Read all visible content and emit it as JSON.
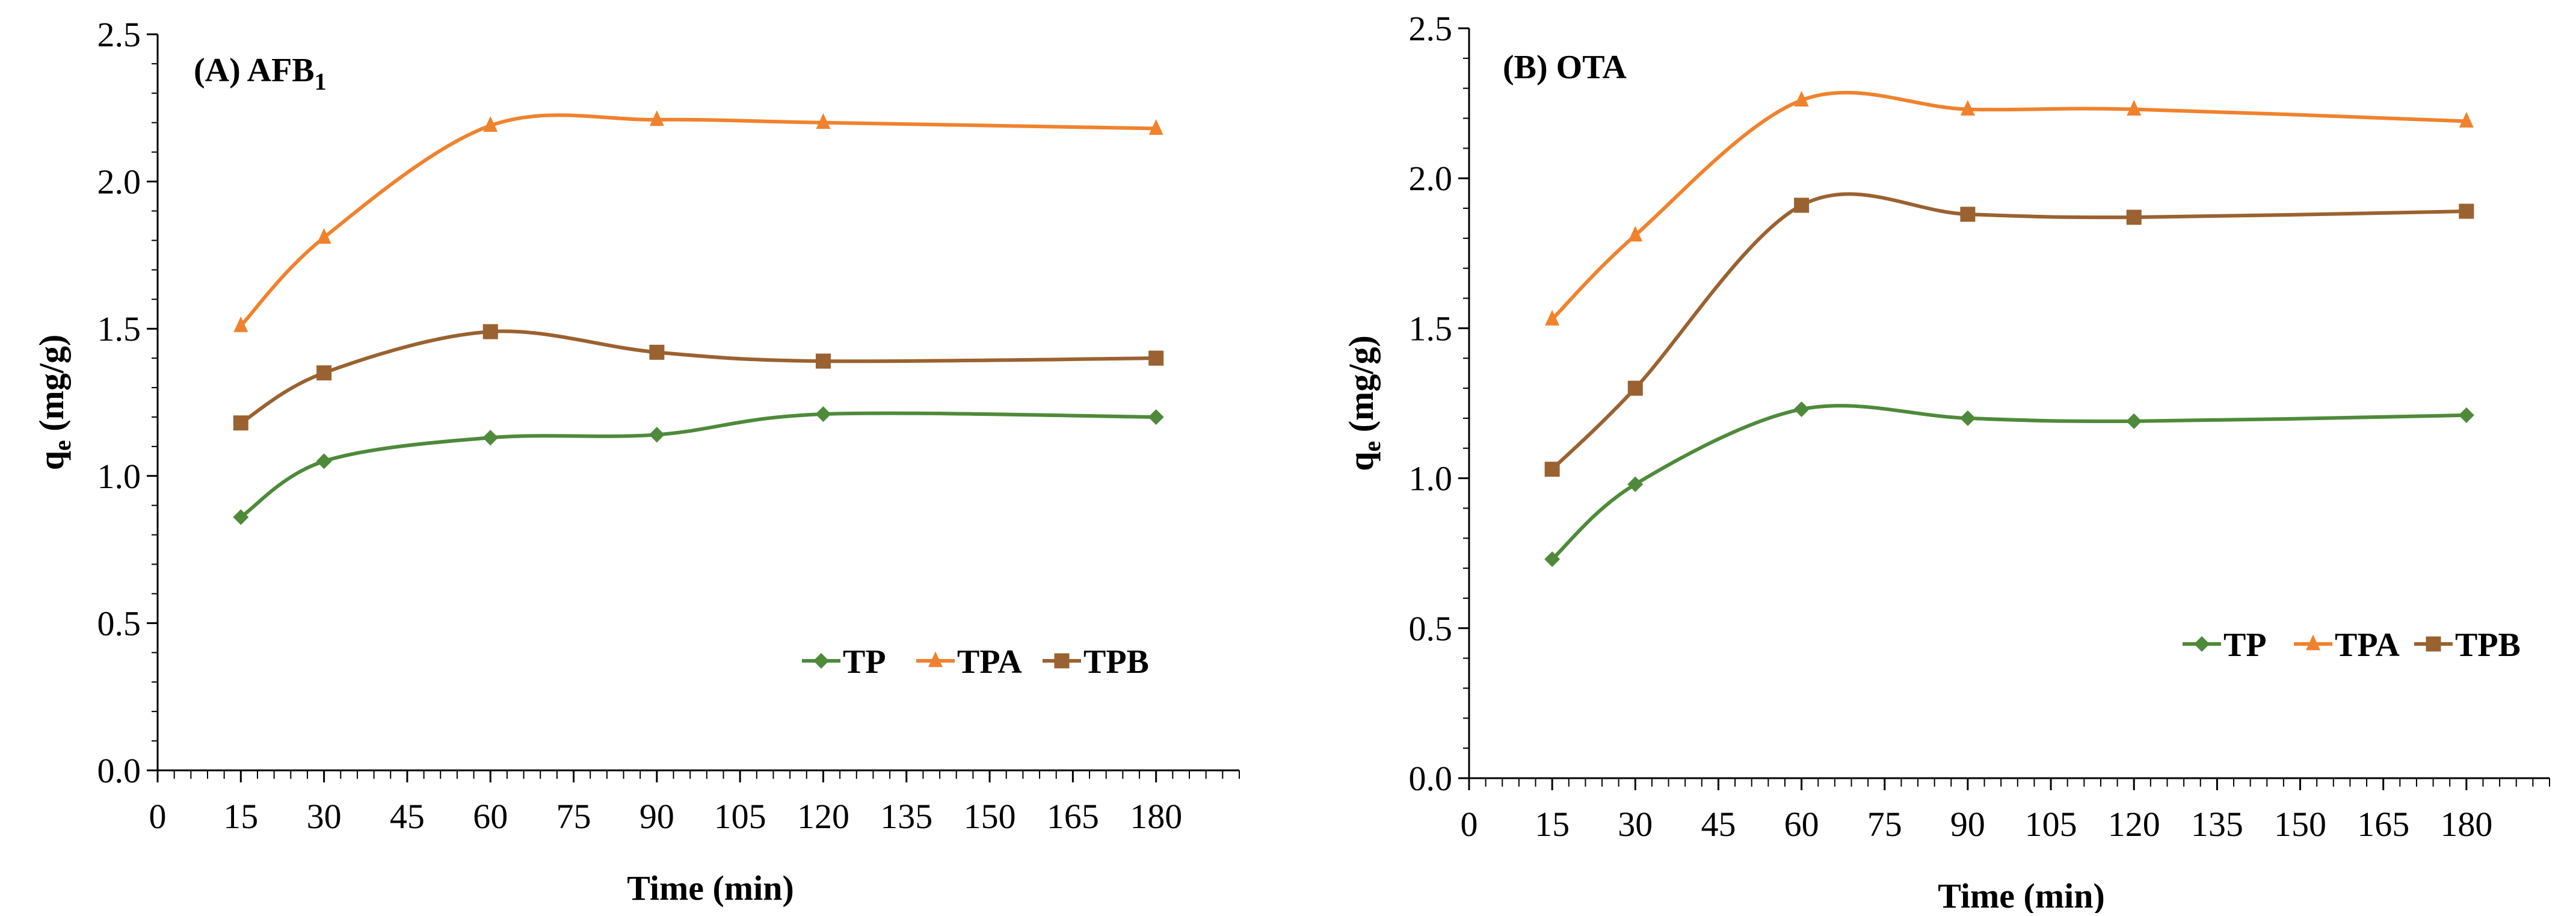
{
  "chart_data": [
    {
      "type": "line",
      "title": "(A) AFB",
      "title_subscript": "1",
      "xlabel": "Time (min)",
      "ylabel": "q",
      "ylabel_subscript": "e",
      "ylabel_suffix": " (mg/g)",
      "x_ticks": [
        0,
        15,
        30,
        45,
        60,
        75,
        90,
        105,
        120,
        135,
        150,
        165,
        180
      ],
      "x_tick_labels": [
        "0",
        "15",
        "30",
        "45",
        "60",
        "75",
        "90",
        "105",
        "120",
        "135",
        "150",
        "165",
        "180"
      ],
      "y_ticks": [
        0.0,
        0.5,
        1.0,
        1.5,
        2.0,
        2.5
      ],
      "y_tick_labels": [
        "0.0",
        "0.5",
        "1.0",
        "1.5",
        "2.0",
        "2.5"
      ],
      "xlim": [
        0,
        195
      ],
      "ylim": [
        0,
        2.5
      ],
      "x_minor_step": 3,
      "legend_position": "bottom-right",
      "x": [
        15,
        30,
        60,
        90,
        120,
        180
      ],
      "series": [
        {
          "name": "TP",
          "color": "#4E8A3A",
          "marker": "diamond",
          "values": [
            0.86,
            1.05,
            1.13,
            1.14,
            1.21,
            1.2
          ]
        },
        {
          "name": "TPA",
          "color": "#F0822D",
          "marker": "triangle",
          "values": [
            1.51,
            1.81,
            2.19,
            2.21,
            2.2,
            2.18
          ]
        },
        {
          "name": "TPB",
          "color": "#9A6230",
          "marker": "square",
          "values": [
            1.18,
            1.35,
            1.49,
            1.42,
            1.39,
            1.4
          ]
        }
      ]
    },
    {
      "type": "line",
      "title": "(B) OTA",
      "title_subscript": "",
      "xlabel": "Time (min)",
      "ylabel": "q",
      "ylabel_subscript": "e",
      "ylabel_suffix": " (mg/g)",
      "x_ticks": [
        0,
        15,
        30,
        45,
        60,
        75,
        90,
        105,
        120,
        135,
        150,
        165,
        180
      ],
      "x_tick_labels": [
        "0",
        "15",
        "30",
        "45",
        "60",
        "75",
        "90",
        "105",
        "120",
        "135",
        "150",
        "165",
        "180"
      ],
      "y_ticks": [
        0.0,
        0.5,
        1.0,
        1.5,
        2.0,
        2.5
      ],
      "y_tick_labels": [
        "0.0",
        "0.5",
        "1.0",
        "1.5",
        "2.0",
        "2.5"
      ],
      "xlim": [
        0,
        195
      ],
      "ylim": [
        0,
        2.5
      ],
      "x_minor_step": 3,
      "legend_position": "bottom-right",
      "x": [
        15,
        30,
        60,
        90,
        120,
        180
      ],
      "series": [
        {
          "name": "TP",
          "color": "#4E8A3A",
          "marker": "diamond",
          "values": [
            0.73,
            0.98,
            1.23,
            1.2,
            1.19,
            1.21
          ]
        },
        {
          "name": "TPA",
          "color": "#F0822D",
          "marker": "triangle",
          "values": [
            1.53,
            1.81,
            2.26,
            2.23,
            2.23,
            2.19
          ]
        },
        {
          "name": "TPB",
          "color": "#9A6230",
          "marker": "square",
          "values": [
            1.03,
            1.3,
            1.91,
            1.88,
            1.87,
            1.89
          ]
        }
      ]
    }
  ]
}
